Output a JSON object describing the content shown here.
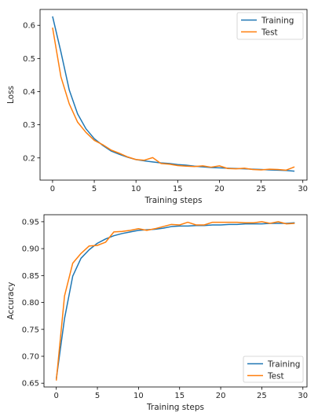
{
  "chart_data": [
    {
      "type": "line",
      "xlabel": "Training steps",
      "ylabel": "Loss",
      "xlim": [
        -1.5,
        30.5
      ],
      "ylim": [
        0.133,
        0.648
      ],
      "xticks": [
        0,
        5,
        10,
        15,
        20,
        25,
        30
      ],
      "xtick_labels": [
        "0",
        "5",
        "10",
        "15",
        "20",
        "25",
        "30"
      ],
      "yticks": [
        0.2,
        0.3,
        0.4,
        0.5,
        0.6
      ],
      "ytick_labels": [
        "0.2",
        "0.3",
        "0.4",
        "0.5",
        "0.6"
      ],
      "legend": "top-right",
      "grid": false,
      "x": [
        0,
        1,
        2,
        3,
        4,
        5,
        6,
        7,
        8,
        9,
        10,
        11,
        12,
        13,
        14,
        15,
        16,
        17,
        18,
        19,
        20,
        21,
        22,
        23,
        24,
        25,
        26,
        27,
        28,
        29
      ],
      "series": [
        {
          "name": "Training",
          "color": "#1f77b4",
          "values": [
            0.627,
            0.52,
            0.405,
            0.333,
            0.288,
            0.258,
            0.238,
            0.221,
            0.211,
            0.202,
            0.195,
            0.191,
            0.188,
            0.185,
            0.183,
            0.18,
            0.178,
            0.175,
            0.173,
            0.171,
            0.17,
            0.169,
            0.168,
            0.167,
            0.166,
            0.165,
            0.164,
            0.163,
            0.162,
            0.16
          ]
        },
        {
          "name": "Test",
          "color": "#ff7f0e",
          "values": [
            0.593,
            0.445,
            0.363,
            0.308,
            0.277,
            0.253,
            0.24,
            0.224,
            0.214,
            0.203,
            0.195,
            0.193,
            0.201,
            0.183,
            0.181,
            0.177,
            0.175,
            0.174,
            0.176,
            0.172,
            0.176,
            0.168,
            0.167,
            0.169,
            0.165,
            0.164,
            0.166,
            0.165,
            0.163,
            0.173
          ]
        }
      ]
    },
    {
      "type": "line",
      "xlabel": "Training steps",
      "ylabel": "Accuracy",
      "xlim": [
        -1.5,
        30.5
      ],
      "ylim": [
        0.643,
        0.963
      ],
      "xticks": [
        0,
        5,
        10,
        15,
        20,
        25,
        30
      ],
      "xtick_labels": [
        "0",
        "5",
        "10",
        "15",
        "20",
        "25",
        "30"
      ],
      "yticks": [
        0.65,
        0.7,
        0.75,
        0.8,
        0.85,
        0.9,
        0.95
      ],
      "ytick_labels": [
        "0.65",
        "0.70",
        "0.75",
        "0.80",
        "0.85",
        "0.90",
        "0.95"
      ],
      "legend": "bottom-right",
      "grid": false,
      "x": [
        0,
        1,
        2,
        3,
        4,
        5,
        6,
        7,
        8,
        9,
        10,
        11,
        12,
        13,
        14,
        15,
        16,
        17,
        18,
        19,
        20,
        21,
        22,
        23,
        24,
        25,
        26,
        27,
        28,
        29
      ],
      "series": [
        {
          "name": "Training",
          "color": "#1f77b4",
          "values": [
            0.658,
            0.77,
            0.849,
            0.882,
            0.898,
            0.91,
            0.918,
            0.924,
            0.928,
            0.931,
            0.934,
            0.935,
            0.936,
            0.938,
            0.941,
            0.942,
            0.942,
            0.943,
            0.943,
            0.944,
            0.944,
            0.945,
            0.945,
            0.946,
            0.946,
            0.946,
            0.947,
            0.947,
            0.947,
            0.948
          ]
        },
        {
          "name": "Test",
          "color": "#ff7f0e",
          "values": [
            0.655,
            0.812,
            0.873,
            0.891,
            0.905,
            0.906,
            0.912,
            0.931,
            0.932,
            0.934,
            0.937,
            0.934,
            0.937,
            0.941,
            0.945,
            0.944,
            0.949,
            0.944,
            0.944,
            0.949,
            0.949,
            0.949,
            0.949,
            0.948,
            0.948,
            0.95,
            0.947,
            0.95,
            0.946,
            0.947
          ]
        }
      ]
    }
  ]
}
